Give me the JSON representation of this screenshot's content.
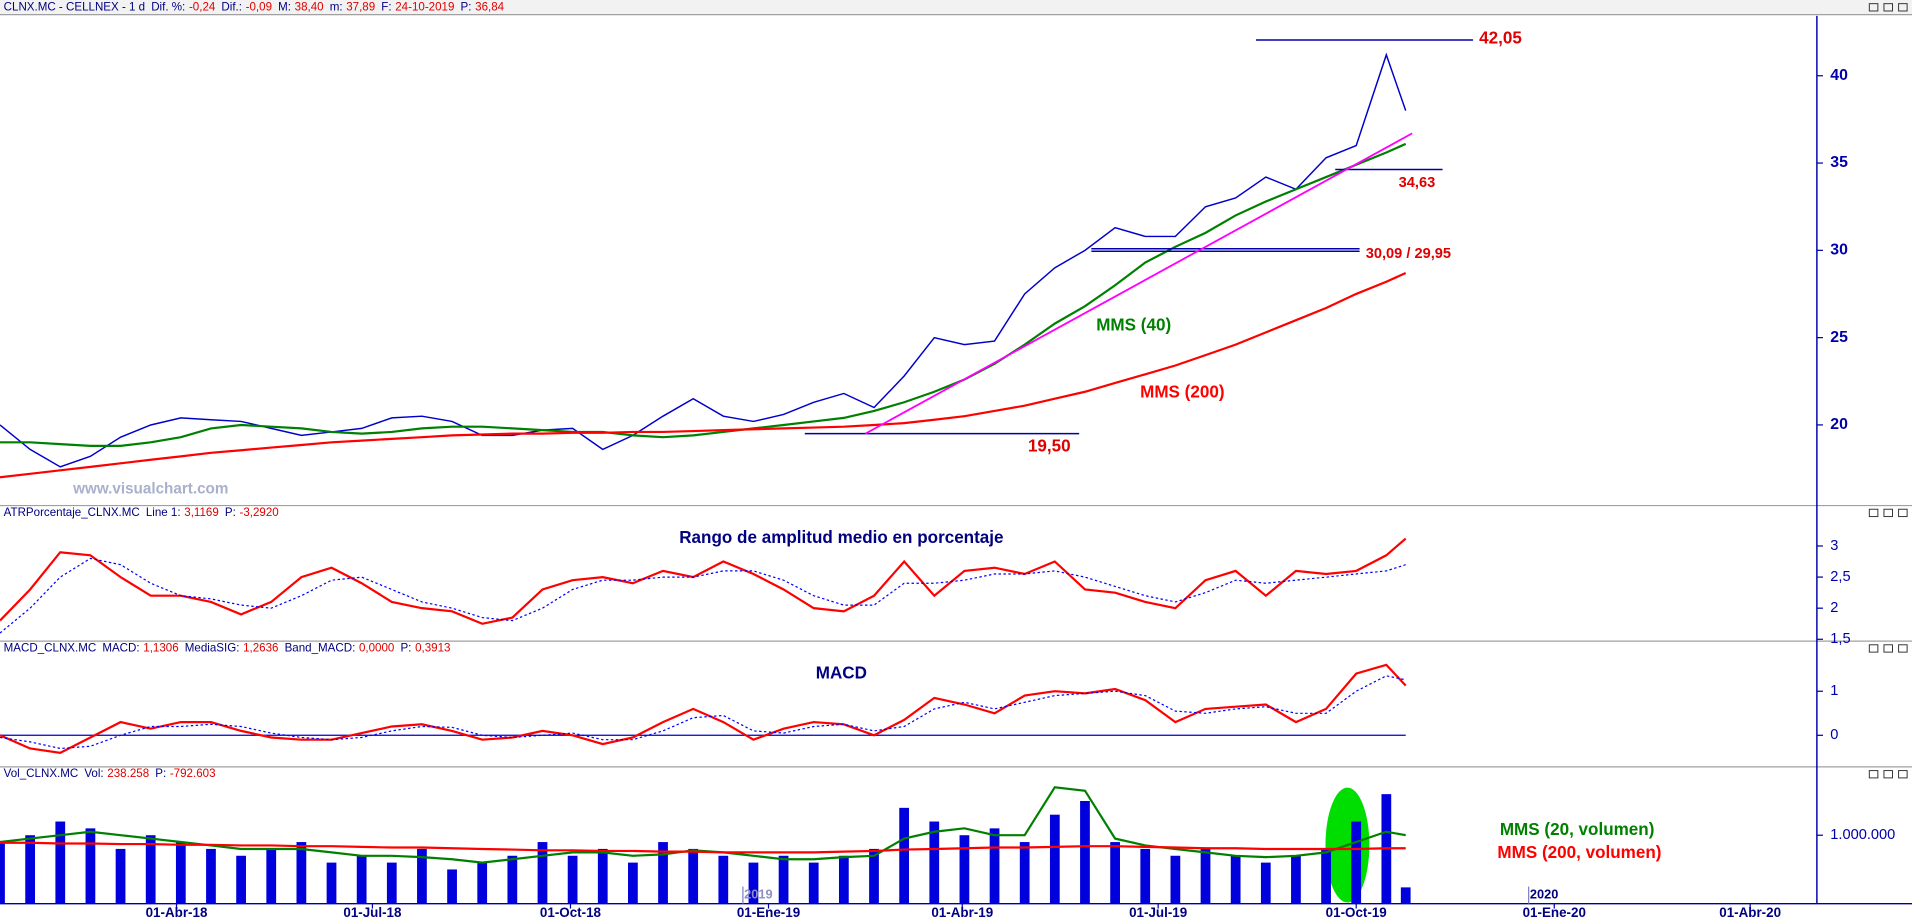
{
  "chart_data": [
    {
      "type": "line",
      "header": {
        "symbol": "CLNX.MC - CELLNEX - 1 d",
        "fields": [
          {
            "label": "Dif. %:",
            "value": "-0,24"
          },
          {
            "label": "Dif.:",
            "value": "-0,09"
          },
          {
            "label": "M:",
            "value": "38,40"
          },
          {
            "label": "m:",
            "value": "37,89"
          },
          {
            "label": "F:",
            "value": "24-10-2019"
          },
          {
            "label": "P:",
            "value": "36,84"
          }
        ]
      },
      "watermark": "www.visualchart.com",
      "xlim": [
        "2018-01-09",
        "2020-05-02"
      ],
      "x": [
        "2018-01-09",
        "2018-01-23",
        "2018-02-06",
        "2018-02-20",
        "2018-03-06",
        "2018-03-20",
        "2018-04-03",
        "2018-04-17",
        "2018-05-01",
        "2018-05-15",
        "2018-05-29",
        "2018-06-12",
        "2018-06-26",
        "2018-07-10",
        "2018-07-24",
        "2018-08-07",
        "2018-08-21",
        "2018-09-04",
        "2018-09-18",
        "2018-10-02",
        "2018-10-16",
        "2018-10-30",
        "2018-11-13",
        "2018-11-27",
        "2018-12-11",
        "2018-12-25",
        "2019-01-08",
        "2019-01-22",
        "2019-02-05",
        "2019-02-19",
        "2019-03-05",
        "2019-03-19",
        "2019-04-02",
        "2019-04-16",
        "2019-04-30",
        "2019-05-14",
        "2019-05-28",
        "2019-06-11",
        "2019-06-25",
        "2019-07-09",
        "2019-07-23",
        "2019-08-06",
        "2019-08-20",
        "2019-09-03",
        "2019-09-17",
        "2019-10-01",
        "2019-10-15",
        "2019-10-24"
      ],
      "ylim": [
        15.45,
        43.43
      ],
      "yticks": [
        20,
        25,
        30,
        35,
        40
      ],
      "series": [
        {
          "color": "#0000cc",
          "values": [
            20.0,
            18.6,
            17.6,
            18.2,
            19.3,
            20.0,
            20.4,
            20.3,
            20.2,
            19.8,
            19.4,
            19.6,
            19.8,
            20.4,
            20.5,
            20.2,
            19.4,
            19.4,
            19.7,
            19.8,
            18.6,
            19.4,
            20.5,
            21.5,
            20.5,
            20.2,
            20.6,
            21.3,
            21.8,
            21.0,
            22.8,
            25.0,
            24.6,
            24.8,
            27.5,
            29.0,
            30.0,
            31.3,
            30.8,
            30.8,
            32.5,
            33.0,
            34.2,
            33.5,
            35.3,
            36.0,
            41.2,
            38.0
          ]
        },
        {
          "name": "MMS (40)",
          "color": "#008000",
          "values": [
            19.0,
            19.0,
            18.9,
            18.8,
            18.8,
            19.0,
            19.3,
            19.8,
            20.0,
            19.9,
            19.8,
            19.6,
            19.5,
            19.6,
            19.8,
            19.9,
            19.9,
            19.8,
            19.7,
            19.6,
            19.6,
            19.4,
            19.3,
            19.4,
            19.6,
            19.8,
            20.0,
            20.2,
            20.4,
            20.8,
            21.3,
            21.9,
            22.6,
            23.5,
            24.6,
            25.8,
            26.8,
            28.0,
            29.3,
            30.2,
            31.0,
            32.0,
            32.8,
            33.5,
            34.2,
            34.9,
            35.6,
            36.1
          ]
        },
        {
          "name": "MMS (200)",
          "color": "#ff0000",
          "values": [
            17.0,
            17.2,
            17.4,
            17.6,
            17.8,
            18.0,
            18.2,
            18.4,
            18.55,
            18.7,
            18.85,
            19.0,
            19.1,
            19.2,
            19.3,
            19.4,
            19.45,
            19.5,
            19.5,
            19.55,
            19.55,
            19.6,
            19.6,
            19.65,
            19.7,
            19.75,
            19.8,
            19.85,
            19.9,
            20.0,
            20.1,
            20.3,
            20.5,
            20.8,
            21.1,
            21.5,
            21.9,
            22.4,
            22.9,
            23.4,
            24.0,
            24.6,
            25.3,
            26.0,
            26.7,
            27.5,
            28.2,
            28.7
          ]
        }
      ],
      "levels": [
        {
          "value": 42.05,
          "label": "42,05"
        },
        {
          "value": 34.63,
          "label": "34,63"
        },
        {
          "values": [
            30.09,
            29.95
          ],
          "label": "30,09 / 29,95"
        },
        {
          "value": 19.5,
          "label": "19,50"
        }
      ],
      "level_color": "#0000aa",
      "level_label_color": "#e00000",
      "trendline": {
        "x": [
          "2019-02-15",
          "2019-10-27"
        ],
        "values": [
          19.5,
          36.7
        ],
        "color": "#ff00ff"
      }
    },
    {
      "type": "line",
      "header": {
        "symbol": "ATRPorcentaje_CLNX.MC",
        "fields": [
          {
            "label": "Line 1:",
            "value": "3,1169"
          },
          {
            "label": "P:",
            "value": "-3,2920"
          }
        ]
      },
      "title": "Rango de amplitud medio en porcentaje",
      "xlim": [
        "2018-01-09",
        "2020-05-02"
      ],
      "x": [
        "2018-01-09",
        "2018-01-23",
        "2018-02-06",
        "2018-02-20",
        "2018-03-06",
        "2018-03-20",
        "2018-04-03",
        "2018-04-17",
        "2018-05-01",
        "2018-05-15",
        "2018-05-29",
        "2018-06-12",
        "2018-06-26",
        "2018-07-10",
        "2018-07-24",
        "2018-08-07",
        "2018-08-21",
        "2018-09-04",
        "2018-09-18",
        "2018-10-02",
        "2018-10-16",
        "2018-10-30",
        "2018-11-13",
        "2018-11-27",
        "2018-12-11",
        "2018-12-25",
        "2019-01-08",
        "2019-01-22",
        "2019-02-05",
        "2019-02-19",
        "2019-03-05",
        "2019-03-19",
        "2019-04-02",
        "2019-04-16",
        "2019-04-30",
        "2019-05-14",
        "2019-05-28",
        "2019-06-11",
        "2019-06-25",
        "2019-07-09",
        "2019-07-23",
        "2019-08-06",
        "2019-08-20",
        "2019-09-03",
        "2019-09-17",
        "2019-10-01",
        "2019-10-15",
        "2019-10-24"
      ],
      "ylim": [
        1.49,
        3.63
      ],
      "yticks": [
        3,
        {
          "value": 2.5,
          "label": "2,5"
        },
        2,
        {
          "value": 1.5,
          "label": "1,5"
        }
      ],
      "series": [
        {
          "color": "#ff0000",
          "values": [
            1.8,
            2.3,
            2.9,
            2.85,
            2.5,
            2.2,
            2.2,
            2.1,
            1.9,
            2.1,
            2.5,
            2.65,
            2.4,
            2.1,
            2.0,
            1.95,
            1.75,
            1.85,
            2.3,
            2.45,
            2.5,
            2.4,
            2.6,
            2.5,
            2.75,
            2.55,
            2.3,
            2.0,
            1.95,
            2.2,
            2.75,
            2.2,
            2.6,
            2.65,
            2.55,
            2.75,
            2.3,
            2.25,
            2.1,
            2.0,
            2.45,
            2.6,
            2.2,
            2.6,
            2.55,
            2.6,
            2.85,
            3.12
          ]
        },
        {
          "color": "#0000ff",
          "dash": true,
          "values": [
            1.6,
            2.0,
            2.5,
            2.8,
            2.7,
            2.4,
            2.2,
            2.15,
            2.05,
            2.0,
            2.2,
            2.45,
            2.5,
            2.3,
            2.1,
            2.0,
            1.85,
            1.8,
            2.0,
            2.3,
            2.45,
            2.45,
            2.5,
            2.5,
            2.6,
            2.6,
            2.45,
            2.2,
            2.05,
            2.05,
            2.4,
            2.4,
            2.45,
            2.55,
            2.55,
            2.6,
            2.5,
            2.35,
            2.2,
            2.1,
            2.25,
            2.45,
            2.4,
            2.45,
            2.5,
            2.55,
            2.6,
            2.7
          ]
        }
      ]
    },
    {
      "type": "line",
      "header": {
        "symbol": "MACD_CLNX.MC",
        "fields": [
          {
            "label": "MACD:",
            "value": "1,1306"
          },
          {
            "label": "MediaSIG:",
            "value": "1,2636"
          },
          {
            "label": "Band_MACD:",
            "value": "0,0000"
          },
          {
            "label": "P:",
            "value": "0,3913"
          }
        ]
      },
      "title": "MACD",
      "xlim": [
        "2018-01-09",
        "2020-05-02"
      ],
      "x": [
        "2018-01-09",
        "2018-01-23",
        "2018-02-06",
        "2018-02-20",
        "2018-03-06",
        "2018-03-20",
        "2018-04-03",
        "2018-04-17",
        "2018-05-01",
        "2018-05-15",
        "2018-05-29",
        "2018-06-12",
        "2018-06-26",
        "2018-07-10",
        "2018-07-24",
        "2018-08-07",
        "2018-08-21",
        "2018-09-04",
        "2018-09-18",
        "2018-10-02",
        "2018-10-16",
        "2018-10-30",
        "2018-11-13",
        "2018-11-27",
        "2018-12-11",
        "2018-12-25",
        "2019-01-08",
        "2019-01-22",
        "2019-02-05",
        "2019-02-19",
        "2019-03-05",
        "2019-03-19",
        "2019-04-02",
        "2019-04-16",
        "2019-04-30",
        "2019-05-14",
        "2019-05-28",
        "2019-06-11",
        "2019-06-25",
        "2019-07-09",
        "2019-07-23",
        "2019-08-06",
        "2019-08-20",
        "2019-09-03",
        "2019-09-17",
        "2019-10-01",
        "2019-10-15",
        "2019-10-24"
      ],
      "ylim": [
        -0.69,
        2.11
      ],
      "yticks": [
        0,
        1
      ],
      "band": 0,
      "band_color": "#0000cc",
      "series": [
        {
          "color": "#ff0000",
          "values": [
            0.0,
            -0.3,
            -0.4,
            -0.05,
            0.3,
            0.15,
            0.3,
            0.3,
            0.1,
            -0.05,
            -0.1,
            -0.1,
            0.05,
            0.2,
            0.25,
            0.1,
            -0.1,
            -0.05,
            0.1,
            0.0,
            -0.2,
            -0.05,
            0.3,
            0.6,
            0.3,
            -0.1,
            0.15,
            0.3,
            0.25,
            0.0,
            0.35,
            0.85,
            0.7,
            0.5,
            0.9,
            1.0,
            0.95,
            1.05,
            0.8,
            0.3,
            0.6,
            0.65,
            0.7,
            0.3,
            0.6,
            1.4,
            1.6,
            1.13
          ]
        },
        {
          "color": "#0000ff",
          "dash": true,
          "values": [
            -0.05,
            -0.15,
            -0.3,
            -0.25,
            0.0,
            0.2,
            0.2,
            0.25,
            0.2,
            0.05,
            -0.05,
            -0.1,
            -0.05,
            0.1,
            0.2,
            0.18,
            0.0,
            -0.05,
            0.0,
            0.05,
            -0.1,
            -0.1,
            0.1,
            0.4,
            0.45,
            0.1,
            0.05,
            0.2,
            0.25,
            0.1,
            0.2,
            0.6,
            0.75,
            0.6,
            0.75,
            0.9,
            0.95,
            1.0,
            0.9,
            0.55,
            0.5,
            0.6,
            0.65,
            0.5,
            0.5,
            1.0,
            1.35,
            1.26
          ]
        }
      ]
    },
    {
      "type": "bar",
      "header": {
        "symbol": "Vol_CLNX.MC",
        "fields": [
          {
            "label": "Vol:",
            "value": "238.258"
          },
          {
            "label": "P:",
            "value": "-792.603"
          }
        ]
      },
      "xlim": [
        "2018-01-09",
        "2020-05-02"
      ],
      "x": [
        "2018-01-09",
        "2018-01-23",
        "2018-02-06",
        "2018-02-20",
        "2018-03-06",
        "2018-03-20",
        "2018-04-03",
        "2018-04-17",
        "2018-05-01",
        "2018-05-15",
        "2018-05-29",
        "2018-06-12",
        "2018-06-26",
        "2018-07-10",
        "2018-07-24",
        "2018-08-07",
        "2018-08-21",
        "2018-09-04",
        "2018-09-18",
        "2018-10-02",
        "2018-10-16",
        "2018-10-30",
        "2018-11-13",
        "2018-11-27",
        "2018-12-11",
        "2018-12-25",
        "2019-01-08",
        "2019-01-22",
        "2019-02-05",
        "2019-02-19",
        "2019-03-05",
        "2019-03-19",
        "2019-04-02",
        "2019-04-16",
        "2019-04-30",
        "2019-05-14",
        "2019-05-28",
        "2019-06-11",
        "2019-06-25",
        "2019-07-09",
        "2019-07-23",
        "2019-08-06",
        "2019-08-20",
        "2019-09-03",
        "2019-09-17",
        "2019-10-01",
        "2019-10-15",
        "2019-10-24"
      ],
      "ylim": [
        0,
        1980000
      ],
      "yticks": [
        {
          "value": 1000000,
          "label": "1.000.000"
        }
      ],
      "xticks": [
        {
          "value": "2018-04-01",
          "label": "01-Abr-18"
        },
        {
          "value": "2018-07-01",
          "label": "01-Jul-18"
        },
        {
          "value": "2018-10-01",
          "label": "01-Oct-18"
        },
        {
          "value": "2019-01-01",
          "label": "01-Ene-19"
        },
        {
          "value": "2019-04-01",
          "label": "01-Abr-19"
        },
        {
          "value": "2019-07-01",
          "label": "01-Jul-19"
        },
        {
          "value": "2019-10-01",
          "label": "01-Oct-19"
        },
        {
          "value": "2020-01-01",
          "label": "01-Ene-20"
        },
        {
          "value": "2020-04-01",
          "label": "01-Abr-20"
        }
      ],
      "year_labels": [
        {
          "value": "2019-01-01",
          "label": "2019"
        },
        {
          "value": "2020-01-01",
          "label": "2020"
        }
      ],
      "series": [
        {
          "type": "bar",
          "color": "#0000dd",
          "values": [
            900000,
            1000000,
            1200000,
            1100000,
            800000,
            1000000,
            900000,
            800000,
            700000,
            800000,
            900000,
            600000,
            700000,
            600000,
            800000,
            500000,
            600000,
            700000,
            900000,
            700000,
            800000,
            600000,
            900000,
            800000,
            700000,
            600000,
            700000,
            600000,
            700000,
            800000,
            1400000,
            1200000,
            1000000,
            1100000,
            900000,
            1300000,
            1500000,
            900000,
            800000,
            700000,
            800000,
            700000,
            600000,
            700000,
            800000,
            1200000,
            1600000,
            238258
          ]
        },
        {
          "name": "MMS (20, volumen)",
          "color": "#008000",
          "values": [
            900000,
            950000,
            1000000,
            1050000,
            1000000,
            950000,
            900000,
            850000,
            800000,
            800000,
            800000,
            750000,
            700000,
            700000,
            680000,
            650000,
            600000,
            650000,
            700000,
            750000,
            750000,
            700000,
            720000,
            780000,
            750000,
            700000,
            650000,
            650000,
            680000,
            700000,
            950000,
            1050000,
            1100000,
            1000000,
            1000000,
            1700000,
            1650000,
            950000,
            850000,
            800000,
            750000,
            700000,
            680000,
            700000,
            750000,
            900000,
            1050000,
            1000000
          ]
        },
        {
          "name": "MMS (200, volumen)",
          "color": "#ff0000",
          "values": [
            890000,
            890000,
            880000,
            880000,
            870000,
            870000,
            860000,
            860000,
            850000,
            850000,
            840000,
            840000,
            830000,
            820000,
            820000,
            810000,
            800000,
            790000,
            780000,
            780000,
            770000,
            770000,
            760000,
            760000,
            750000,
            750000,
            750000,
            750000,
            760000,
            770000,
            790000,
            800000,
            810000,
            820000,
            820000,
            830000,
            840000,
            840000,
            830000,
            820000,
            810000,
            810000,
            800000,
            800000,
            800000,
            800000,
            810000,
            810000
          ]
        }
      ]
    }
  ]
}
